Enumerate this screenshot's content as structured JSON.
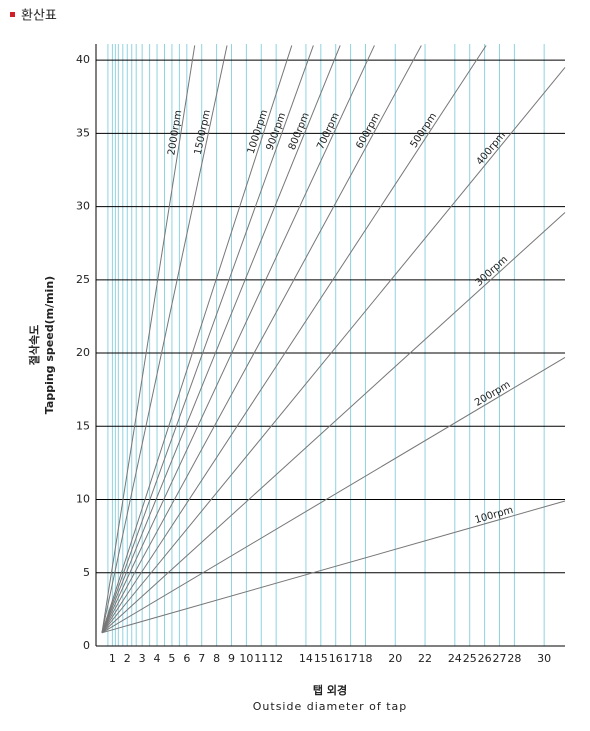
{
  "header": {
    "title": "환산표"
  },
  "chart_data": {
    "type": "line",
    "ylabel_ko": "절삭속도",
    "ylabel": "Tapping speed(m/min)",
    "xlabel_ko": "탭 외경",
    "xlabel": "Outside diameter of tap",
    "xlim": [
      -0.1,
      31.4
    ],
    "ylim": [
      0,
      41.1
    ],
    "xticks": [
      1,
      2,
      3,
      4,
      5,
      6,
      7,
      8,
      9,
      10,
      11,
      12,
      14,
      15,
      16,
      17,
      18,
      20,
      22,
      24,
      25,
      26,
      27,
      28,
      30
    ],
    "xgrid": [
      0.7,
      1,
      1.2,
      1.4,
      1.7,
      2,
      2.3,
      2.6,
      3,
      3.5,
      4,
      4.5,
      5,
      5.5,
      6,
      7,
      8,
      9,
      10,
      11,
      12,
      14,
      15,
      16,
      17,
      18,
      20,
      22,
      24,
      25,
      26,
      27,
      28,
      30
    ],
    "yticks": [
      0,
      5,
      10,
      15,
      20,
      25,
      30,
      35,
      40
    ],
    "grid": true,
    "xgrid_color": "#8fd3e0",
    "ygrid_color": "#000000",
    "series": [
      {
        "name": "2000rpm",
        "color": "#777777",
        "x": [
          0.3,
          6.53
        ],
        "values": [
          0.9,
          41
        ]
      },
      {
        "name": "1500rpm",
        "color": "#777777",
        "x": [
          0.3,
          8.7
        ],
        "values": [
          0.9,
          41
        ]
      },
      {
        "name": "1000rpm",
        "color": "#777777",
        "x": [
          0.3,
          13.05
        ],
        "values": [
          0.9,
          41
        ]
      },
      {
        "name": "900rpm",
        "color": "#777777",
        "x": [
          0.3,
          14.5
        ],
        "values": [
          0.9,
          41
        ]
      },
      {
        "name": "800rpm",
        "color": "#777777",
        "x": [
          0.3,
          16.3
        ],
        "values": [
          0.9,
          41
        ]
      },
      {
        "name": "700rpm",
        "color": "#777777",
        "x": [
          0.3,
          18.6
        ],
        "values": [
          0.9,
          41
        ]
      },
      {
        "name": "600rpm",
        "color": "#777777",
        "x": [
          0.3,
          21.75
        ],
        "values": [
          0.9,
          41
        ]
      },
      {
        "name": "500rpm",
        "color": "#777777",
        "x": [
          0.3,
          26.1
        ],
        "values": [
          0.9,
          41
        ]
      },
      {
        "name": "400rpm",
        "color": "#777777",
        "x": [
          0.3,
          31.4
        ],
        "values": [
          0.9,
          39.5
        ]
      },
      {
        "name": "300rpm",
        "color": "#777777",
        "x": [
          0.3,
          31.4
        ],
        "values": [
          0.9,
          29.6
        ]
      },
      {
        "name": "200rpm",
        "color": "#777777",
        "x": [
          0.3,
          31.4
        ],
        "values": [
          0.9,
          19.7
        ]
      },
      {
        "name": "100rpm",
        "color": "#777777",
        "x": [
          0.3,
          31.4
        ],
        "values": [
          0.9,
          9.9
        ]
      }
    ]
  }
}
